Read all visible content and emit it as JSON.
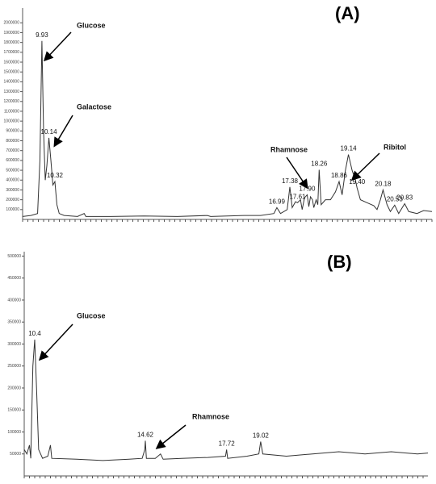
{
  "chart_data": [
    {
      "type": "line",
      "title": "(A)",
      "color": "#333333",
      "xlim": [
        9.35,
        21.65
      ],
      "ylim": [
        0,
        2150000
      ],
      "yticks": [
        100000,
        200000,
        300000,
        400000,
        500000,
        600000,
        700000,
        800000,
        900000,
        1000000,
        1100000,
        1200000,
        1300000,
        1400000,
        1500000,
        1600000,
        1700000,
        1800000,
        1900000,
        2000000
      ],
      "x": [
        9.35,
        9.6,
        9.8,
        9.87,
        9.93,
        9.98,
        10.03,
        10.08,
        10.14,
        10.2,
        10.26,
        10.32,
        10.38,
        10.45,
        10.6,
        11.0,
        11.2,
        11.25,
        12,
        13,
        14,
        14.9,
        15,
        16,
        16.5,
        16.9,
        16.99,
        17.1,
        17.3,
        17.38,
        17.45,
        17.55,
        17.61,
        17.7,
        17.75,
        17.82,
        17.9,
        17.95,
        18.0,
        18.06,
        18.1,
        18.17,
        18.22,
        18.26,
        18.32,
        18.45,
        18.6,
        18.75,
        18.86,
        18.95,
        19.05,
        19.14,
        19.25,
        19.35,
        19.4,
        19.5,
        19.7,
        19.9,
        20.0,
        20.1,
        20.18,
        20.3,
        20.4,
        20.53,
        20.65,
        20.83,
        20.95,
        21.2,
        21.4,
        21.65
      ],
      "values": [
        30000,
        40000,
        60000,
        600000,
        1815000,
        900000,
        400000,
        550000,
        830000,
        600000,
        350000,
        385000,
        150000,
        60000,
        40000,
        30000,
        60000,
        30000,
        30000,
        35000,
        30000,
        40000,
        30000,
        40000,
        40000,
        60000,
        120000,
        60000,
        100000,
        330000,
        120000,
        180000,
        170000,
        200000,
        100000,
        220000,
        250000,
        130000,
        230000,
        200000,
        120000,
        200000,
        150000,
        505000,
        150000,
        200000,
        200000,
        280000,
        385000,
        250000,
        500000,
        660000,
        500000,
        400000,
        320000,
        200000,
        170000,
        140000,
        100000,
        200000,
        300000,
        150000,
        80000,
        145000,
        60000,
        160000,
        80000,
        60000,
        90000,
        80000
      ],
      "peak_labels": [
        9.93,
        10.14,
        10.32,
        16.99,
        17.38,
        17.61,
        {
          "value": 17.9,
          "label": "17.90"
        },
        18.26,
        18.86,
        19.14,
        {
          "value": 19.4,
          "label": "19.40"
        },
        20.18,
        20.53,
        20.83
      ],
      "annotations": [
        "Glucose",
        "Galactose",
        "Rhamnose",
        "Ribitol"
      ]
    },
    {
      "type": "line",
      "title": "(B)",
      "color": "#333333",
      "xlim": [
        10.0,
        25.4
      ],
      "ylim": [
        0,
        510000
      ],
      "yticks": [
        50000,
        100000,
        150000,
        200000,
        250000,
        300000,
        350000,
        400000,
        450000,
        500000
      ],
      "x": [
        10.0,
        10.1,
        10.2,
        10.25,
        10.33,
        10.4,
        10.47,
        10.55,
        10.7,
        10.9,
        11.0,
        11.05,
        12,
        13,
        14,
        14.5,
        14.6,
        14.62,
        14.66,
        15,
        15.2,
        15.3,
        16,
        17,
        17.68,
        17.72,
        17.76,
        18.5,
        18.95,
        19.02,
        19.1,
        20,
        21,
        22,
        23,
        24,
        25,
        25.4
      ],
      "values": [
        60000,
        50000,
        70000,
        40000,
        250000,
        310000,
        200000,
        60000,
        40000,
        45000,
        70000,
        40000,
        38000,
        35000,
        38000,
        40000,
        60000,
        80000,
        40000,
        40000,
        50000,
        38000,
        40000,
        42000,
        45000,
        60000,
        40000,
        45000,
        50000,
        78000,
        50000,
        45000,
        50000,
        55000,
        50000,
        55000,
        50000,
        52000
      ],
      "peak_labels": [
        10.4,
        14.62,
        17.72,
        19.02
      ],
      "annotations": [
        "Glucose",
        "Rhamnose"
      ]
    }
  ]
}
